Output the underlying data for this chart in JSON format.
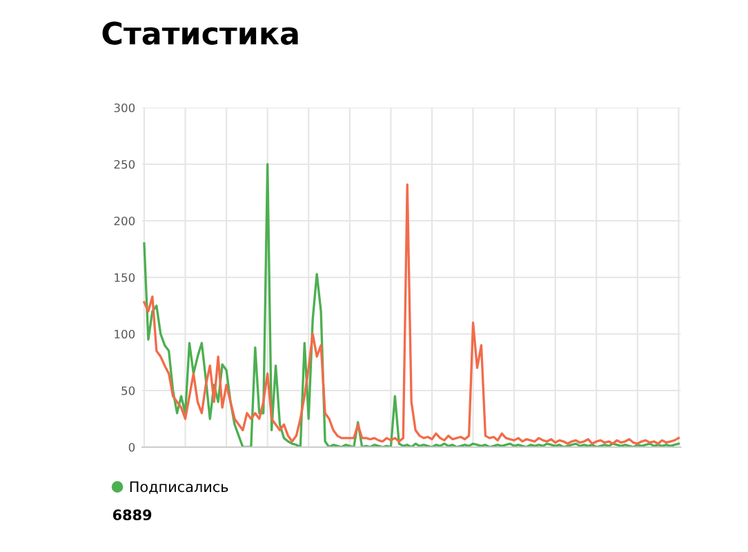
{
  "chart_data": {
    "type": "line",
    "title": "Статистика",
    "categories": [
      null,
      null,
      null,
      null,
      null,
      null,
      null,
      null,
      null,
      null,
      null,
      null,
      null,
      null,
      null,
      null,
      null,
      null,
      null,
      null,
      null,
      null,
      null,
      null,
      null,
      null,
      null,
      null,
      null,
      null,
      null,
      null,
      null,
      null,
      null,
      null,
      null,
      null,
      null,
      null,
      null,
      null,
      null,
      null,
      null,
      null,
      null,
      null,
      null,
      null,
      null,
      null,
      null,
      null,
      null,
      null,
      null,
      null,
      null,
      null,
      null,
      null,
      null,
      null,
      null,
      null,
      null,
      null,
      null,
      null,
      null,
      null,
      null,
      null,
      null,
      null,
      null,
      null,
      null,
      null,
      null,
      null,
      null,
      null,
      null,
      null,
      null,
      null,
      null,
      null,
      null,
      null,
      null,
      null,
      null,
      null,
      null,
      null,
      null,
      null,
      null,
      null,
      null,
      null,
      null,
      null,
      null,
      null,
      null,
      null,
      null,
      null,
      null,
      null,
      null,
      null,
      null,
      null,
      null,
      null,
      null,
      null,
      null,
      null,
      null,
      null,
      null,
      null,
      null,
      null,
      null
    ],
    "series": [
      {
        "name": "Подписались",
        "color": "#4caf50",
        "values": [
          180,
          95,
          120,
          125,
          100,
          90,
          85,
          50,
          30,
          45,
          30,
          92,
          65,
          80,
          92,
          60,
          25,
          55,
          40,
          73,
          68,
          40,
          20,
          10,
          0,
          0,
          0,
          88,
          30,
          30,
          250,
          15,
          72,
          20,
          8,
          5,
          3,
          2,
          0,
          92,
          25,
          113,
          153,
          120,
          5,
          0,
          2,
          1,
          0,
          2,
          1,
          0,
          22,
          0,
          1,
          0,
          2,
          1,
          0,
          1,
          0,
          45,
          3,
          1,
          2,
          0,
          3,
          1,
          2,
          1,
          0,
          2,
          1,
          3,
          1,
          2,
          0,
          1,
          2,
          1,
          3,
          2,
          1,
          2,
          0,
          1,
          2,
          1,
          2,
          3,
          1,
          2,
          1,
          0,
          2,
          1,
          2,
          1,
          3,
          2,
          1,
          2,
          0,
          1,
          2,
          3,
          1,
          2,
          1,
          2,
          0,
          1,
          2,
          1,
          3,
          2,
          1,
          2,
          1,
          0,
          2,
          1,
          2,
          3,
          1,
          2,
          1,
          2,
          1,
          2,
          3
        ]
      },
      {
        "color": "#f26b4a",
        "values": [
          128,
          120,
          133,
          85,
          80,
          72,
          65,
          45,
          40,
          35,
          25,
          45,
          65,
          40,
          30,
          55,
          72,
          40,
          80,
          35,
          55,
          40,
          25,
          20,
          15,
          30,
          25,
          30,
          25,
          40,
          65,
          25,
          20,
          15,
          20,
          10,
          5,
          10,
          25,
          45,
          70,
          100,
          80,
          90,
          30,
          25,
          15,
          10,
          8,
          8,
          8,
          8,
          20,
          8,
          8,
          7,
          8,
          6,
          5,
          8,
          6,
          8,
          5,
          8,
          232,
          40,
          15,
          10,
          8,
          9,
          7,
          12,
          8,
          6,
          10,
          7,
          8,
          9,
          7,
          10,
          110,
          70,
          90,
          10,
          8,
          9,
          6,
          12,
          8,
          7,
          6,
          8,
          5,
          7,
          6,
          5,
          8,
          6,
          5,
          7,
          4,
          6,
          5,
          3,
          5,
          6,
          4,
          5,
          7,
          3,
          5,
          6,
          4,
          5,
          3,
          6,
          4,
          5,
          7,
          4,
          3,
          5,
          6,
          4,
          5,
          3,
          6,
          4,
          5,
          6,
          8
        ]
      }
    ],
    "ylim": [
      0,
      300
    ],
    "yticks": [
      0,
      50,
      100,
      150,
      200,
      250,
      300
    ],
    "grid": true,
    "legend": "bottom left",
    "marker": "none",
    "line_style": "solid",
    "annotations": [
      "6889"
    ]
  }
}
